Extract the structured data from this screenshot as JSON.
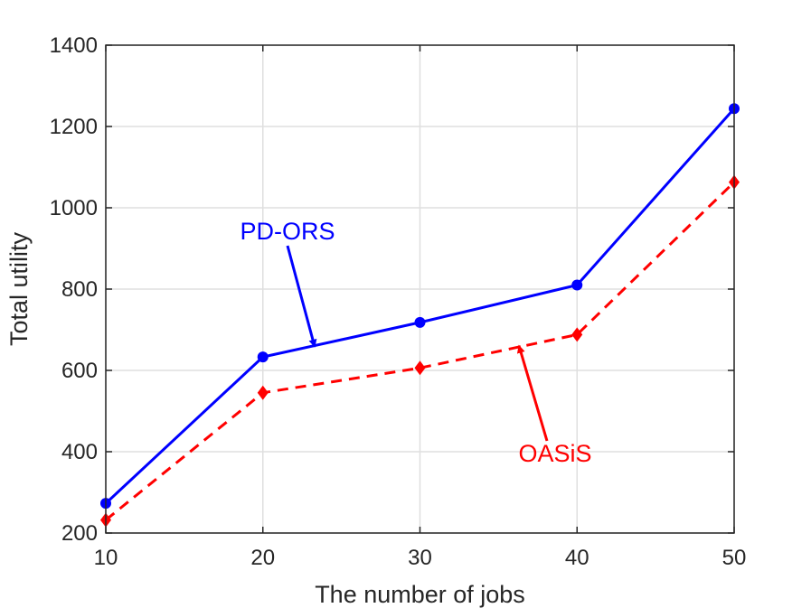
{
  "chart_data": {
    "type": "line",
    "title": "",
    "xlabel": "The number of jobs",
    "ylabel": "Total utility",
    "x": [
      10,
      20,
      30,
      40,
      50
    ],
    "xlim": [
      10,
      50
    ],
    "ylim": [
      200,
      1400
    ],
    "xticks": [
      10,
      20,
      30,
      40,
      50
    ],
    "yticks": [
      200,
      400,
      600,
      800,
      1000,
      1200,
      1400
    ],
    "grid": true,
    "series": [
      {
        "name": "PD-ORS",
        "values": [
          273,
          633,
          718,
          810,
          1244
        ],
        "color": "#0000ff",
        "line_style": "solid",
        "marker": "circle"
      },
      {
        "name": "OASiS",
        "values": [
          232,
          545,
          606,
          688,
          1063
        ],
        "color": "#ff0000",
        "line_style": "dashed",
        "marker": "diamond"
      }
    ],
    "annotations": [
      {
        "text": "PD-ORS",
        "color": "#0000ff",
        "points_to_series": "PD-ORS",
        "arrow_target": {
          "x": 23.3,
          "y": 658
        }
      },
      {
        "text": "OASiS",
        "color": "#ff0000",
        "points_to_series": "OASiS",
        "arrow_target": {
          "x": 36.3,
          "y": 661
        }
      }
    ]
  }
}
